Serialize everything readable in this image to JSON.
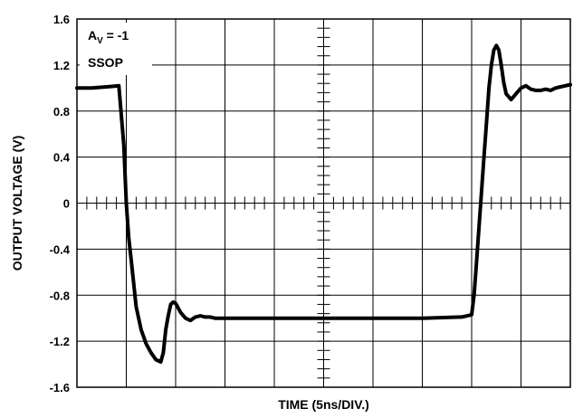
{
  "chart_data": {
    "type": "line",
    "xlabel": "TIME (5ns/DIV.)",
    "ylabel": "OUTPUT VOLTAGE (V)",
    "ylim": [
      -1.6,
      1.6
    ],
    "yticks": [
      "1.6",
      "1.2",
      "0.8",
      "0.4",
      "0",
      "-0.4",
      "-0.8",
      "-1.2",
      "-1.6"
    ],
    "ytick_values": [
      1.6,
      1.2,
      0.8,
      0.4,
      0,
      -0.4,
      -0.8,
      -1.2,
      -1.6
    ],
    "x_divisions": 10,
    "grid": true,
    "annotation": {
      "gain_base": "A",
      "gain_sub": "V",
      "gain_rest": " = -1",
      "package": "SSOP"
    },
    "series": [
      {
        "x": [
          0,
          0.3,
          0.6,
          0.85,
          0.95,
          1.0,
          1.05,
          1.1,
          1.15,
          1.2,
          1.3,
          1.4,
          1.5,
          1.6,
          1.7,
          1.75,
          1.8,
          1.85,
          1.9,
          1.95,
          2.0,
          2.05,
          2.1,
          2.2,
          2.3,
          2.4,
          2.5,
          2.6,
          2.7,
          2.8,
          3.0,
          3.5,
          4.0,
          5.0,
          6.0,
          7.0,
          7.8,
          8.0,
          8.05,
          8.1,
          8.15,
          8.2,
          8.25,
          8.3,
          8.35,
          8.4,
          8.45,
          8.5,
          8.55,
          8.6,
          8.65,
          8.7,
          8.8,
          8.9,
          9.0,
          9.1,
          9.2,
          9.3,
          9.4,
          9.5,
          9.6,
          9.7,
          9.8,
          9.9,
          10.0
        ],
        "y": [
          1.0,
          1.0,
          1.01,
          1.02,
          0.5,
          0.0,
          -0.3,
          -0.5,
          -0.7,
          -0.9,
          -1.1,
          -1.22,
          -1.3,
          -1.36,
          -1.38,
          -1.3,
          -1.1,
          -0.98,
          -0.88,
          -0.86,
          -0.87,
          -0.91,
          -0.95,
          -1.0,
          -1.02,
          -0.99,
          -0.98,
          -0.99,
          -0.99,
          -1.0,
          -1.0,
          -1.0,
          -1.0,
          -1.0,
          -1.0,
          -1.0,
          -0.99,
          -0.97,
          -0.8,
          -0.5,
          -0.2,
          0.1,
          0.4,
          0.7,
          1.0,
          1.2,
          1.33,
          1.37,
          1.33,
          1.2,
          1.05,
          0.95,
          0.9,
          0.95,
          1.0,
          1.02,
          0.99,
          0.98,
          0.98,
          0.99,
          0.98,
          1.0,
          1.01,
          1.02,
          1.03
        ]
      }
    ]
  }
}
